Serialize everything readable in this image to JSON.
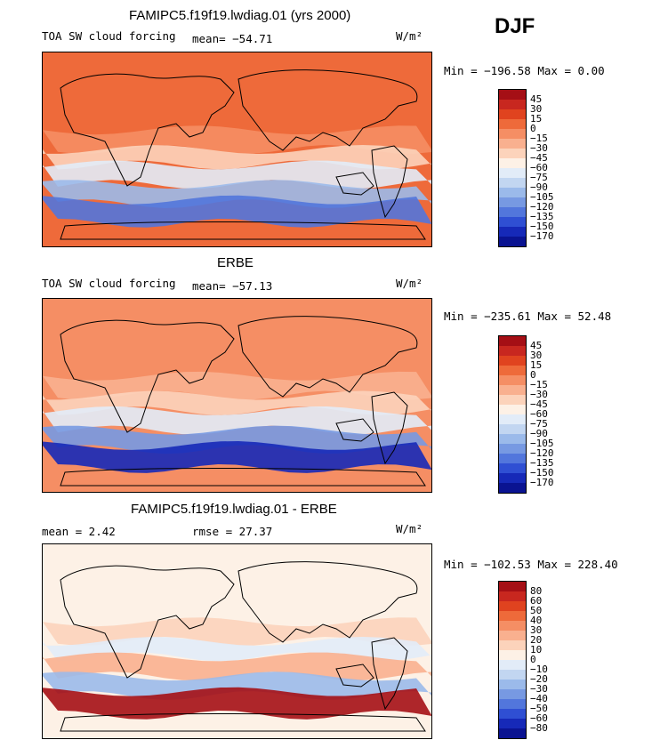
{
  "season": "DJF",
  "panels": [
    {
      "title": "FAMIPC5.f19f19.lwdiag.01 (yrs 2000)",
      "left_label": "TOA SW cloud forcing",
      "stat1": "mean= −54.71",
      "stat2": "",
      "units": "W/m²",
      "minmax": "Min = −196.58 Max =   0.00",
      "colorbar": {
        "labels": [
          "45",
          "30",
          "15",
          "0",
          "−15",
          "−30",
          "−45",
          "−60",
          "−75",
          "−90",
          "−105",
          "−120",
          "−135",
          "−150",
          "−170"
        ],
        "colors": [
          "#a50f15",
          "#c8271f",
          "#e0431f",
          "#ee6a3a",
          "#f58e64",
          "#f9b08f",
          "#fcd3bb",
          "#fdf1e6",
          "#e2ecf8",
          "#c2d6f1",
          "#9bbaea",
          "#7799e2",
          "#5276dc",
          "#2f4fd3",
          "#1629b8",
          "#0a1391"
        ]
      },
      "map": {
        "base": "#ee6a3a",
        "bands": [
          "#f58e64",
          "#fcd3bb",
          "#e2ecf8",
          "#9bbaea",
          "#5276dc"
        ]
      }
    },
    {
      "title": "ERBE",
      "left_label": "TOA SW cloud forcing",
      "stat1": "mean= −57.13",
      "stat2": "",
      "units": "W/m²",
      "minmax": "Min = −235.61 Max =  52.48",
      "colorbar": {
        "labels": [
          "45",
          "30",
          "15",
          "0",
          "−15",
          "−30",
          "−45",
          "−60",
          "−75",
          "−90",
          "−105",
          "−120",
          "−135",
          "−150",
          "−170"
        ],
        "colors": [
          "#a50f15",
          "#c8271f",
          "#e0431f",
          "#ee6a3a",
          "#f58e64",
          "#f9b08f",
          "#fcd3bb",
          "#fdf1e6",
          "#e2ecf8",
          "#c2d6f1",
          "#9bbaea",
          "#7799e2",
          "#5276dc",
          "#2f4fd3",
          "#1629b8",
          "#0a1391"
        ]
      },
      "map": {
        "base": "#f58e64",
        "bands": [
          "#f9b08f",
          "#fcd3bb",
          "#e2ecf8",
          "#7799e2",
          "#1629b8"
        ]
      }
    },
    {
      "title": "FAMIPC5.f19f19.lwdiag.01 - ERBE",
      "left_label": "mean =   2.42",
      "stat1": "rmse =  27.37",
      "stat2": "",
      "units": "W/m²",
      "minmax": "Min = −102.53 Max = 228.40",
      "colorbar": {
        "labels": [
          "80",
          "60",
          "50",
          "40",
          "30",
          "20",
          "10",
          "0",
          "−10",
          "−20",
          "−30",
          "−40",
          "−50",
          "−60",
          "−80"
        ],
        "colors": [
          "#a50f15",
          "#c8271f",
          "#e0431f",
          "#ee6a3a",
          "#f58e64",
          "#f9b08f",
          "#fcd3bb",
          "#fdf1e6",
          "#e2ecf8",
          "#c2d6f1",
          "#9bbaea",
          "#7799e2",
          "#5276dc",
          "#2f4fd3",
          "#1629b8",
          "#0a1391"
        ]
      },
      "map": {
        "base": "#fdf1e6",
        "bands": [
          "#fcd3bb",
          "#e2ecf8",
          "#f9b08f",
          "#9bbaea",
          "#a50f15"
        ]
      }
    }
  ]
}
